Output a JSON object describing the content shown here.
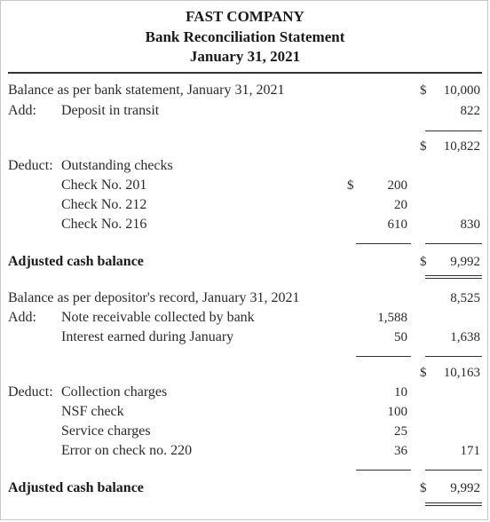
{
  "header": {
    "company": "FAST COMPANY",
    "statement": "Bank Reconciliation Statement",
    "date": "January 31, 2021"
  },
  "bank": {
    "balance_label": "Balance as per bank statement,",
    "balance_date": "January 31, 2021",
    "balance_currency": "$",
    "balance_value": "10,000",
    "add_label": "Add:",
    "deposit_label": "Deposit in transit",
    "deposit_value": "822",
    "subtotal_currency": "$",
    "subtotal_value": "10,822",
    "deduct_label": "Deduct:",
    "outstanding_label": "Outstanding checks",
    "checks": [
      {
        "label": "Check No. 201",
        "value": "200"
      },
      {
        "label": "Check No. 212",
        "value": "20"
      },
      {
        "label": "Check No. 216",
        "value": "610"
      }
    ],
    "checks_currency": "$",
    "checks_total": "830",
    "adjusted_label": "Adjusted cash balance",
    "adjusted_currency": "$",
    "adjusted_value": "9,992"
  },
  "book": {
    "balance_label": "Balance as per depositor's record,",
    "balance_date": "January 31, 2021",
    "balance_value": "8,525",
    "add_label": "Add:",
    "additions": [
      {
        "label": "Note receivable collected by bank",
        "value": "1,588"
      },
      {
        "label": "Interest earned during January",
        "value": "50"
      }
    ],
    "additions_total": "1,638",
    "subtotal_currency": "$",
    "subtotal_value": "10,163",
    "deduct_label": "Deduct:",
    "deductions": [
      {
        "label": "Collection charges",
        "value": "10"
      },
      {
        "label": "NSF check",
        "value": "100"
      },
      {
        "label": "Service charges",
        "value": "25"
      },
      {
        "label": "Error on check no. 220",
        "value": "36"
      }
    ],
    "deductions_total": "171",
    "adjusted_label": "Adjusted cash balance",
    "adjusted_currency": "$",
    "adjusted_value": "9,992"
  }
}
